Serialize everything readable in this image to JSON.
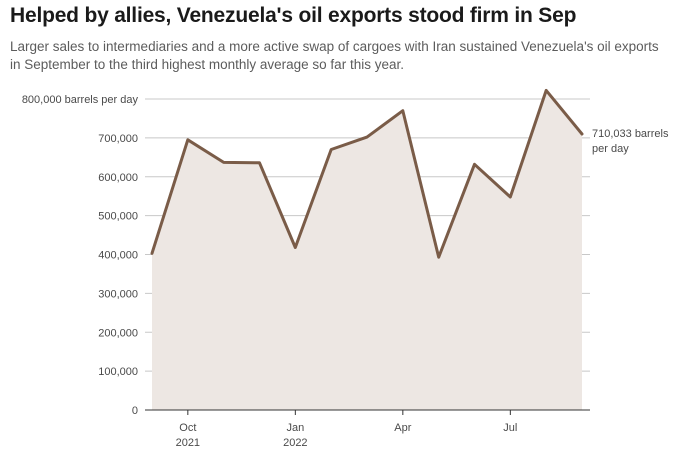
{
  "header": {
    "title": "Helped by allies, Venezuela's oil exports stood firm in Sep",
    "subtitle": "Larger sales to intermediaries and a more active swap of cargoes with Iran sustained Venezuela's oil exports in September to the third highest monthly average so far this year."
  },
  "colors": {
    "line": "#7a5c48",
    "area": "#ede7e3",
    "grid": "#c8c8c8",
    "axis": "#333333"
  },
  "chart_data": {
    "type": "area",
    "title": "Helped by allies, Venezuela's oil exports stood firm in Sep",
    "ylabel": "barrels per day",
    "y_unit_label": "800,000 barrels per day",
    "ylim": [
      0,
      800000
    ],
    "yticks": [
      0,
      100000,
      200000,
      300000,
      400000,
      500000,
      600000,
      700000,
      800000
    ],
    "ytick_labels": [
      "0",
      "100,000",
      "200,000",
      "300,000",
      "400,000",
      "500,000",
      "600,000",
      "700,000",
      "800,000 barrels per day"
    ],
    "x": [
      "2021-09",
      "2021-10",
      "2021-11",
      "2021-12",
      "2022-01",
      "2022-02",
      "2022-03",
      "2022-04",
      "2022-05",
      "2022-06",
      "2022-07",
      "2022-08",
      "2022-09"
    ],
    "series": [
      {
        "name": "Venezuela oil exports",
        "values": [
          403000,
          695000,
          637000,
          636000,
          418000,
          670000,
          702000,
          770000,
          393000,
          632000,
          548000,
          822000,
          710033
        ]
      }
    ],
    "xticks": [
      {
        "index": 1,
        "line1": "Oct",
        "line2": "2021"
      },
      {
        "index": 4,
        "line1": "Jan",
        "line2": "2022"
      },
      {
        "index": 7,
        "line1": "Apr",
        "line2": ""
      },
      {
        "index": 10,
        "line1": "Jul",
        "line2": ""
      }
    ],
    "annotation": {
      "index": 12,
      "line1": "710,033 barrels",
      "line2": "per day"
    }
  }
}
